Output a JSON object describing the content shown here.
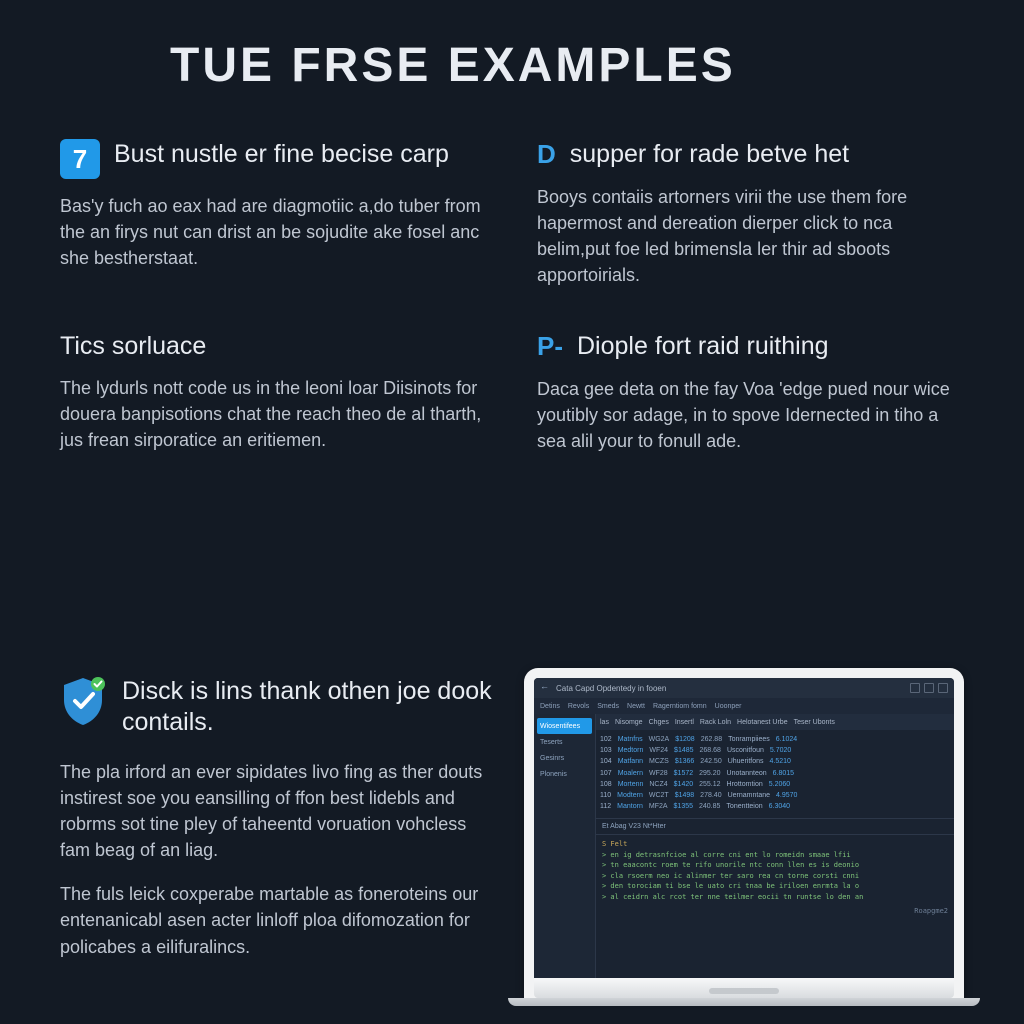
{
  "colors": {
    "background": "#131a24",
    "text_primary": "#e8ecf2",
    "text_body": "#bfc6d1",
    "accent": "#2199e8",
    "shield": "#2f8fd6",
    "shield_badge": "#4cc25a"
  },
  "title": "TUE FRSE EXAMPLES",
  "items": [
    {
      "badge": {
        "type": "box",
        "text": "7"
      },
      "heading": "Bust nustle er fine becise carp",
      "body": "Bas'y fuch ao eax had are diagmotiic a,do tuber from the an firys nut can drist an be sojudite ake fosel anc she bestherstaat."
    },
    {
      "badge": {
        "type": "letter",
        "text": "D"
      },
      "heading": "supper for rade betve het",
      "body": "Booys contaiis artorners virii the use them fore hapermost and dereation dierper click to nca belim,put foe led brimensla ler thir ad sboots apportoirials."
    },
    {
      "badge": null,
      "heading": "Tics sorluace",
      "body": "The lydurls nott code us in the leoni loar Diisinots for douera banpisotions chat the reach theo de al tharth, jus frean sirporatice an eritiemen."
    },
    {
      "badge": {
        "type": "letter",
        "text": "P-"
      },
      "heading": "Diople fort raid ruithing",
      "body": "Daca gee deta on the fay Voa 'edge pued nour wice youtibly sor adage, in to spove Idernected in tiho a sea alil your to fonull ade."
    }
  ],
  "bottom": {
    "heading": "Disck is lins thank othen joe dook contails.",
    "para1": "The pla irford an ever sipidates livo fing as ther douts instirest soe you eansilling of ffon best lidebls and robrms sot tine pley of taheentd voruation vohcless fam beag of an liag.",
    "para2": "The fuls leick coxperabe martable as foneroteins our entenanicabl asen acter linloff ploa difomozation for policabes a eilifuralincs."
  },
  "laptop": {
    "title": "Cata Capd Opdentedy in fooen",
    "tabs": [
      "Detins",
      "Revols",
      "Smeds",
      "Newtt",
      "Ragerntiom fomn",
      "Uoonper"
    ],
    "sidebar": [
      "Wiosentifees",
      "Teserts",
      "Gesinrs",
      "Plonenis"
    ],
    "columns": [
      "las",
      "Nisomge",
      "Chges",
      "Insertl",
      "Rack Loln",
      "Helotanest Urbe",
      "Teser Ubonts"
    ],
    "rows": [
      [
        "102",
        "Matnfns",
        "WG2A",
        "$1208",
        "262.88",
        "Tonrampiiees",
        "6.1024"
      ],
      [
        "103",
        "Medtorn",
        "WF24",
        "$1485",
        "268.68",
        "Usconitfoun",
        "5.7020"
      ],
      [
        "104",
        "Matfann",
        "MCZS",
        "$1366",
        "242.50",
        "Uhueritfons",
        "4.5210"
      ],
      [
        "107",
        "Moalern",
        "WF28",
        "$1572",
        "295.20",
        "Unotannteon",
        "6.8015"
      ],
      [
        "108",
        "Mortenn",
        "NCZ4",
        "$1420",
        "255.12",
        "Hrottomtion",
        "5.2060"
      ],
      [
        "110",
        "Modtern",
        "WC2T",
        "$1498",
        "278.40",
        "Uernamntane",
        "4.9570"
      ],
      [
        "112",
        "Mantorn",
        "MF2A",
        "$1355",
        "240.85",
        "Tonentteion",
        "6.3040"
      ]
    ],
    "divider": "Et Abag V23 Nt*Hter",
    "terminal_head": "S Felt",
    "terminal_lines": [
      "> en ig detrasnfcioe al corre cni ent lo romeidn smaae lfii",
      "> tn eaacontc roem te rifo unorile ntc conn llen es is deonio",
      "> cla rsoerm neo ic alinmer ter saro rea cn torne corsti cnni",
      "> den torociam ti bse le uato cri tnaa be iriloen enrmta la o",
      "> al ceidrn alc rcot ter nne teilmer eocii tn runtse lo den an"
    ],
    "brand": "Roapgme2"
  }
}
